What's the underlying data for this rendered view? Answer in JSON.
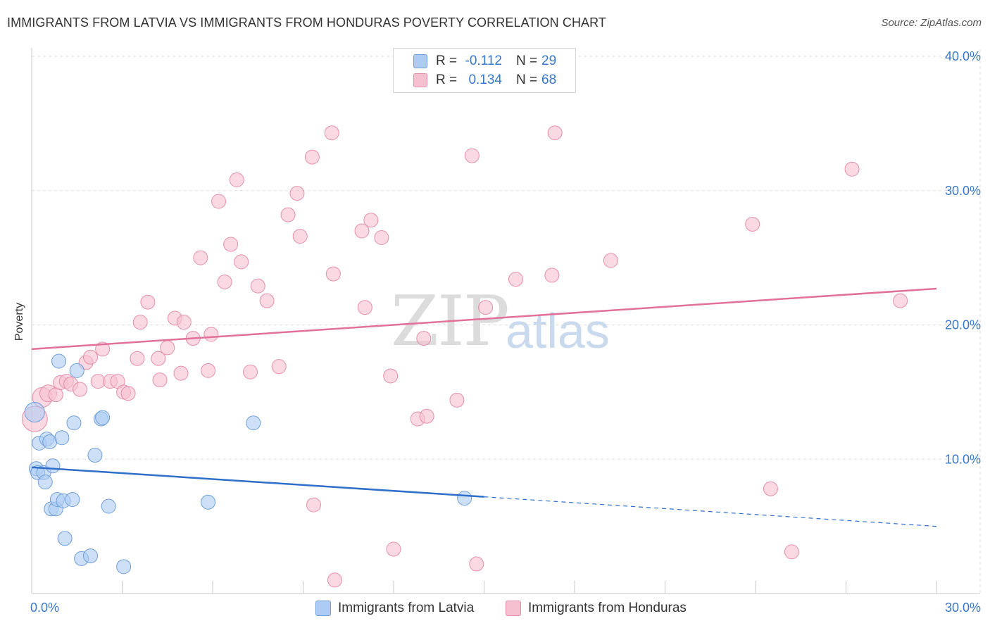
{
  "header": {
    "title": "IMMIGRANTS FROM LATVIA VS IMMIGRANTS FROM HONDURAS POVERTY CORRELATION CHART",
    "source": "Source: ZipAtlas.com"
  },
  "watermark": {
    "zip": "ZIP",
    "atlas": "atlas"
  },
  "legend": {
    "rows": [
      {
        "r_label": "R =",
        "r_value": "-0.112",
        "n_label": "N =",
        "n_value": "29"
      },
      {
        "r_label": "R =",
        "r_value": "0.134",
        "n_label": "N =",
        "n_value": "68"
      }
    ]
  },
  "bottom_legend": {
    "latvia": "Immigrants from Latvia",
    "honduras": "Immigrants from Honduras"
  },
  "colors": {
    "latvia_fill": "#aecbf3",
    "latvia_stroke": "#6f9fd8",
    "latvia_line": "#2f6fc9",
    "honduras_fill": "#f7c0d0",
    "honduras_stroke": "#e58fab",
    "honduras_line": "#e0719a",
    "axis_text": "#3a78c9",
    "grid": "#dddddd"
  },
  "chart_data": {
    "type": "scatter",
    "title": "IMMIGRANTS FROM LATVIA VS IMMIGRANTS FROM HONDURAS POVERTY CORRELATION CHART",
    "xlabel": "",
    "ylabel": "Poverty",
    "xlim": [
      0,
      30
    ],
    "ylim": [
      0,
      40
    ],
    "x_tick_labels": [
      "0.0%",
      "30.0%"
    ],
    "y_ticks": [
      10,
      20,
      30,
      40
    ],
    "y_tick_labels": [
      "10.0%",
      "20.0%",
      "30.0%",
      "40.0%"
    ],
    "series": [
      {
        "name": "Immigrants from Latvia",
        "r": -0.112,
        "n": 29,
        "trend": {
          "x0": 0,
          "y0": 9.4,
          "x1": 15,
          "y1": 7.2,
          "dash_to_x": 30,
          "dash_to_y": 5.0
        },
        "points": [
          [
            0.1,
            13.5
          ],
          [
            0.15,
            9.3
          ],
          [
            0.2,
            9.0
          ],
          [
            0.25,
            11.2
          ],
          [
            0.4,
            9.0
          ],
          [
            0.45,
            8.3
          ],
          [
            0.5,
            11.5
          ],
          [
            0.6,
            11.3
          ],
          [
            0.65,
            6.3
          ],
          [
            0.7,
            9.5
          ],
          [
            0.8,
            6.3
          ],
          [
            0.85,
            7.0
          ],
          [
            0.9,
            17.3
          ],
          [
            1.0,
            11.6
          ],
          [
            1.05,
            6.9
          ],
          [
            1.1,
            4.1
          ],
          [
            1.35,
            7.0
          ],
          [
            1.4,
            12.7
          ],
          [
            1.5,
            16.6
          ],
          [
            1.65,
            2.6
          ],
          [
            1.95,
            2.8
          ],
          [
            2.1,
            10.3
          ],
          [
            2.3,
            13.0
          ],
          [
            2.35,
            13.1
          ],
          [
            2.55,
            6.5
          ],
          [
            3.05,
            2.0
          ],
          [
            5.85,
            6.8
          ],
          [
            7.35,
            12.7
          ],
          [
            14.35,
            7.1
          ]
        ],
        "sizes": [
          14,
          10,
          10,
          10,
          10,
          10,
          10,
          10,
          10,
          10,
          10,
          10,
          10,
          10,
          10,
          10,
          10,
          10,
          10,
          10,
          10,
          10,
          10,
          10,
          10,
          10,
          10,
          10,
          10
        ]
      },
      {
        "name": "Immigrants from Honduras",
        "r": 0.134,
        "n": 68,
        "trend": {
          "x0": 0,
          "y0": 18.2,
          "x1": 30,
          "y1": 22.7
        },
        "points": [
          [
            0.1,
            13.0
          ],
          [
            0.35,
            14.6
          ],
          [
            0.55,
            14.9
          ],
          [
            0.8,
            14.8
          ],
          [
            0.95,
            15.7
          ],
          [
            1.15,
            15.8
          ],
          [
            1.3,
            15.6
          ],
          [
            1.6,
            15.2
          ],
          [
            1.8,
            17.2
          ],
          [
            1.95,
            17.6
          ],
          [
            2.2,
            15.8
          ],
          [
            2.35,
            18.2
          ],
          [
            2.6,
            15.8
          ],
          [
            2.85,
            15.8
          ],
          [
            3.05,
            15.0
          ],
          [
            3.2,
            14.9
          ],
          [
            3.5,
            17.5
          ],
          [
            3.6,
            20.2
          ],
          [
            3.85,
            21.7
          ],
          [
            4.2,
            17.5
          ],
          [
            4.25,
            15.9
          ],
          [
            4.5,
            18.3
          ],
          [
            4.75,
            20.5
          ],
          [
            4.95,
            16.4
          ],
          [
            5.05,
            20.2
          ],
          [
            5.35,
            19.0
          ],
          [
            5.6,
            25.0
          ],
          [
            5.85,
            16.6
          ],
          [
            5.95,
            19.3
          ],
          [
            6.2,
            29.2
          ],
          [
            6.4,
            23.2
          ],
          [
            6.6,
            26.0
          ],
          [
            6.8,
            30.8
          ],
          [
            6.95,
            24.7
          ],
          [
            7.25,
            16.5
          ],
          [
            7.5,
            22.9
          ],
          [
            7.8,
            21.8
          ],
          [
            8.2,
            16.9
          ],
          [
            8.5,
            28.2
          ],
          [
            8.8,
            29.8
          ],
          [
            8.9,
            26.6
          ],
          [
            9.3,
            32.5
          ],
          [
            9.35,
            6.6
          ],
          [
            9.95,
            34.3
          ],
          [
            10.0,
            23.8
          ],
          [
            10.05,
            1.0
          ],
          [
            10.95,
            27.0
          ],
          [
            11.05,
            21.3
          ],
          [
            11.25,
            27.8
          ],
          [
            11.6,
            26.5
          ],
          [
            11.9,
            16.2
          ],
          [
            12.0,
            3.3
          ],
          [
            12.8,
            13.0
          ],
          [
            13.0,
            19.0
          ],
          [
            13.1,
            13.2
          ],
          [
            14.1,
            14.4
          ],
          [
            14.6,
            32.6
          ],
          [
            14.75,
            2.2
          ],
          [
            15.05,
            21.3
          ],
          [
            16.05,
            23.4
          ],
          [
            17.25,
            23.7
          ],
          [
            17.35,
            34.3
          ],
          [
            19.2,
            24.8
          ],
          [
            23.9,
            27.5
          ],
          [
            24.5,
            7.8
          ],
          [
            25.2,
            3.1
          ],
          [
            27.2,
            31.6
          ],
          [
            28.8,
            21.8
          ]
        ],
        "sizes": [
          18,
          14,
          12,
          10,
          10,
          10,
          10,
          10,
          10,
          10,
          10,
          10,
          10,
          10,
          10,
          10,
          10,
          10,
          10,
          10,
          10,
          10,
          10,
          10,
          10,
          10,
          10,
          10,
          10,
          10,
          10,
          10,
          10,
          10,
          10,
          10,
          10,
          10,
          10,
          10,
          10,
          10,
          10,
          10,
          10,
          10,
          10,
          10,
          10,
          10,
          10,
          10,
          10,
          10,
          10,
          10,
          10,
          10,
          10,
          10,
          10,
          10,
          10,
          10,
          10,
          10,
          10,
          10
        ]
      }
    ]
  }
}
